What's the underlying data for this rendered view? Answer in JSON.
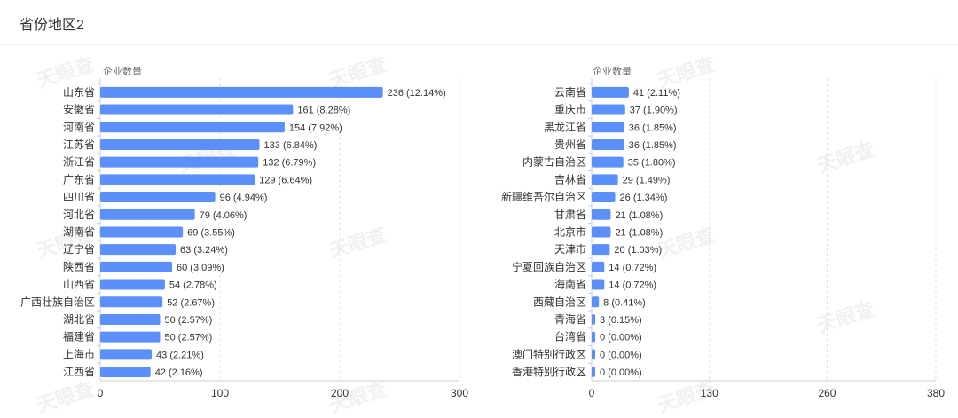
{
  "header": {
    "title": "省份地区2"
  },
  "watermark": "天眼查",
  "chart_data": [
    {
      "type": "bar",
      "orientation": "horizontal",
      "ylabel": "企业数量",
      "xlim": [
        0,
        300
      ],
      "xticks": [
        0,
        100,
        200,
        300
      ],
      "grid": true,
      "bar_color": "#5b8ff9",
      "categories": [
        "山东省",
        "安徽省",
        "河南省",
        "江苏省",
        "浙江省",
        "广东省",
        "四川省",
        "河北省",
        "湖南省",
        "辽宁省",
        "陕西省",
        "山西省",
        "广西壮族自治区",
        "湖北省",
        "福建省",
        "上海市",
        "江西省"
      ],
      "values": [
        236,
        161,
        154,
        133,
        132,
        129,
        96,
        79,
        69,
        63,
        60,
        54,
        52,
        50,
        50,
        43,
        42
      ],
      "percents": [
        "12.14%",
        "8.28%",
        "7.92%",
        "6.84%",
        "6.79%",
        "6.64%",
        "4.94%",
        "4.06%",
        "3.55%",
        "3.24%",
        "3.09%",
        "2.78%",
        "2.67%",
        "2.57%",
        "2.57%",
        "2.21%",
        "2.16%"
      ]
    },
    {
      "type": "bar",
      "orientation": "horizontal",
      "ylabel": "企业数量",
      "xlim": [
        0,
        380
      ],
      "xticks": [
        0,
        130,
        260,
        380
      ],
      "grid": true,
      "bar_color": "#5b8ff9",
      "categories": [
        "云南省",
        "重庆市",
        "黑龙江省",
        "贵州省",
        "内蒙古自治区",
        "吉林省",
        "新疆维吾尔自治区",
        "甘肃省",
        "北京市",
        "天津市",
        "宁夏回族自治区",
        "海南省",
        "西藏自治区",
        "青海省",
        "台湾省",
        "澳门特别行政区",
        "香港特别行政区"
      ],
      "values": [
        41,
        37,
        36,
        36,
        35,
        29,
        26,
        21,
        21,
        20,
        14,
        14,
        8,
        3,
        0,
        0,
        0
      ],
      "percents": [
        "2.11%",
        "1.90%",
        "1.85%",
        "1.85%",
        "1.80%",
        "1.49%",
        "1.34%",
        "1.08%",
        "1.08%",
        "1.03%",
        "0.72%",
        "0.72%",
        "0.41%",
        "0.15%",
        "0.00%",
        "0.00%",
        "0.00%"
      ]
    }
  ]
}
